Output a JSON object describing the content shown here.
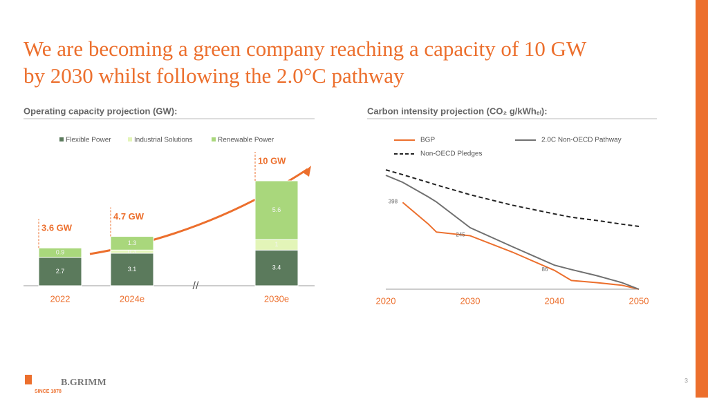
{
  "title_line1": "We are becoming a green company reaching a capacity of 10 GW",
  "title_line2": "by 2030 whilst following the 2.0°C pathway",
  "logo": "B.GRIMM",
  "logo_tagline": "SINCE 1878",
  "page_number": "3",
  "chart_data": [
    {
      "type": "stacked-bar",
      "title": "Operating capacity projection (GW):",
      "categories": [
        "2022",
        "2024e",
        "2030e"
      ],
      "series": [
        {
          "name": "Flexible Power",
          "color": "#5b7a5c",
          "values": [
            2.7,
            3.1,
            3.4
          ]
        },
        {
          "name": "Industrial Solutions",
          "color": "#e3f5b8",
          "values": [
            null,
            0.3,
            1.0
          ]
        },
        {
          "name": "Renewable Power",
          "color": "#a9d77c",
          "values": [
            0.9,
            1.3,
            5.6
          ]
        }
      ],
      "annotations": [
        "3.6 GW",
        "4.7 GW",
        "10 GW"
      ]
    },
    {
      "type": "line",
      "title": "Carbon intensity projection (CO₂ g/kWhₑₗ):",
      "x": [
        2020,
        2022,
        2025,
        2026,
        2030,
        2035,
        2040,
        2042,
        2045,
        2048,
        2050
      ],
      "xlim": [
        2020,
        2050
      ],
      "xticks": [
        2020,
        2030,
        2040,
        2050
      ],
      "ylim": [
        0,
        560
      ],
      "series": [
        {
          "name": "BGP",
          "color": "#ec6f2d",
          "values": [
            null,
            398,
            300,
            262,
            245,
            170,
            86,
            40,
            30,
            18,
            0
          ],
          "value_labels": [
            null,
            "398",
            null,
            null,
            "245",
            null,
            "86",
            null,
            null,
            null,
            null
          ]
        },
        {
          "name": "2.0C Non-OECD Pathway",
          "color": "#707070",
          "values": [
            522,
            490,
            424,
            400,
            282,
            195,
            110,
            90,
            62,
            30,
            0
          ]
        },
        {
          "name": "Non-OECD Pledges",
          "color": "#222222",
          "dash": true,
          "values": [
            547,
            525,
            490,
            478,
            433,
            385,
            345,
            330,
            315,
            298,
            288
          ]
        }
      ]
    }
  ]
}
